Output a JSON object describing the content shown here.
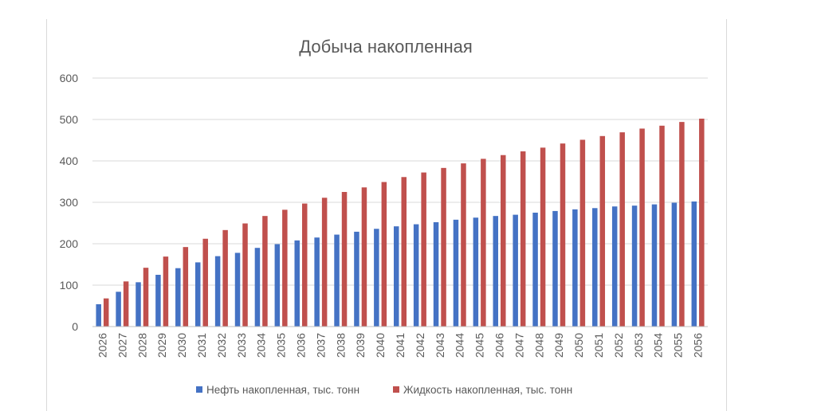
{
  "chart_data": {
    "type": "bar",
    "title": "Добыча накопленная",
    "xlabel": "",
    "ylabel": "",
    "ylim": [
      0,
      600
    ],
    "yticks": [
      0,
      100,
      200,
      300,
      400,
      500,
      600
    ],
    "grid": true,
    "legend_position": "bottom",
    "categories": [
      "2026",
      "2027",
      "2028",
      "2029",
      "2030",
      "2031",
      "2032",
      "2033",
      "2034",
      "2035",
      "2036",
      "2037",
      "2038",
      "2039",
      "2040",
      "2041",
      "2042",
      "2043",
      "2044",
      "2045",
      "2046",
      "2047",
      "2048",
      "2049",
      "2050",
      "2051",
      "2052",
      "2053",
      "2054",
      "2055",
      "2056"
    ],
    "series": [
      {
        "name": "Нефть накопленная, тыс. тонн",
        "color": "#4472c4",
        "values": [
          54,
          84,
          107,
          125,
          141,
          155,
          170,
          178,
          190,
          199,
          208,
          215,
          222,
          229,
          236,
          242,
          247,
          252,
          258,
          263,
          267,
          270,
          275,
          279,
          283,
          286,
          290,
          292,
          295,
          299,
          302
        ]
      },
      {
        "name": "Жидкость накопленная, тыс. тонн",
        "color": "#c0504d",
        "values": [
          68,
          109,
          142,
          169,
          192,
          212,
          233,
          249,
          267,
          282,
          297,
          311,
          325,
          336,
          349,
          361,
          372,
          383,
          394,
          405,
          414,
          423,
          432,
          442,
          451,
          460,
          469,
          478,
          485,
          494,
          502
        ]
      }
    ]
  }
}
